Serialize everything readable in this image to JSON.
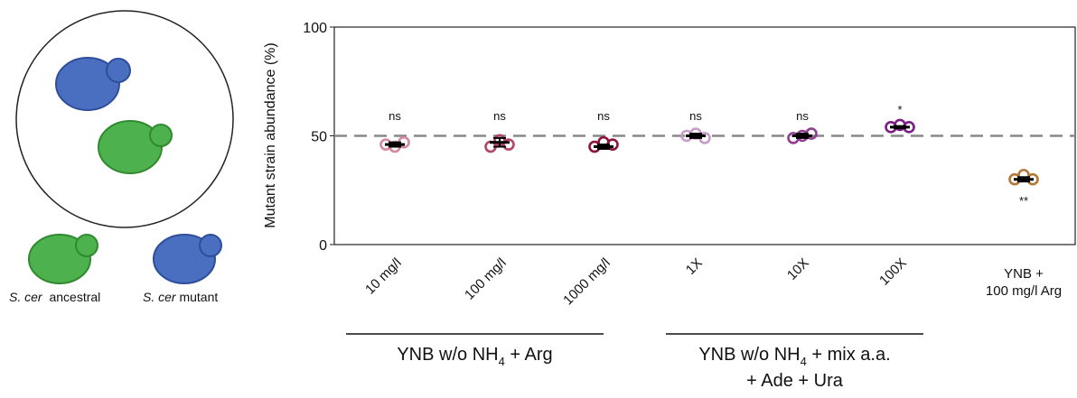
{
  "illustration": {
    "labels": [
      {
        "species": "S. cer",
        "strain": "ancestral"
      },
      {
        "species": "S. cer",
        "strain": "mutant"
      }
    ]
  },
  "chart_data": {
    "type": "dot",
    "y_label": "Mutant strain abundance (%)",
    "categories": [
      "10 mg/l",
      "100 mg/l",
      "1000 mg/l",
      "1X",
      "10X",
      "100X",
      "YNB +\n100 mg/l Arg"
    ],
    "replicates": [
      [
        46,
        45,
        47
      ],
      [
        45,
        48,
        46
      ],
      [
        45,
        47,
        46
      ],
      [
        50,
        51,
        49
      ],
      [
        49,
        50,
        51
      ],
      [
        54,
        55,
        54
      ],
      [
        30,
        32,
        30
      ]
    ],
    "means": [
      46,
      47,
      45,
      50,
      50,
      54,
      30
    ],
    "errors": [
      1,
      2,
      1,
      1,
      1,
      0.5,
      1
    ],
    "colors": [
      "#d4899f",
      "#b2456b",
      "#8b1439",
      "#c99bcb",
      "#8f3e90",
      "#7b1d83",
      "#b27936"
    ],
    "significance": [
      "ns",
      "ns",
      "ns",
      "ns",
      "ns",
      "*",
      "**"
    ],
    "reference_line": 50,
    "ylim": [
      0,
      100
    ],
    "yticks": [
      0,
      50,
      100
    ],
    "groups": [
      {
        "text": "YNB w/o NH",
        "subscript": "4",
        "rest": " + Arg"
      },
      {
        "text": "YNB w/o NH",
        "subscript": "4",
        "rest": " + mix a.a.",
        "line2": "+ Ade + Ura"
      }
    ]
  }
}
